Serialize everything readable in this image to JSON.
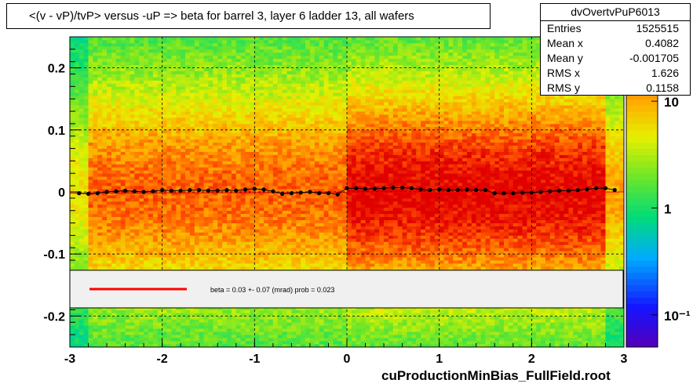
{
  "title": "<(v - vP)/tvP> versus  -uP => beta for barrel 3, layer 6 ladder 13, all wafers",
  "stats": {
    "name": "dvOvertvPuP6013",
    "rows": [
      {
        "label": "Entries",
        "value": "1525515"
      },
      {
        "label": "Mean x",
        "value": "0.4082"
      },
      {
        "label": "Mean y",
        "value": "-0.001705"
      },
      {
        "label": "RMS x",
        "value": "1.626"
      },
      {
        "label": "RMS y",
        "value": "0.1158"
      }
    ]
  },
  "fit_legend": {
    "text": "beta =    0.03 +-  0.07 (mrad) prob = 0.023",
    "line_color": "#ff0000"
  },
  "footer": "cuProductionMinBias_FullField.root",
  "colors": {
    "profile_points": "#000000",
    "fit_line": "#ff0000",
    "grid": "#000000"
  },
  "chart_data": {
    "type": "heatmap",
    "xlim": [
      -3,
      3
    ],
    "ylim": [
      -0.25,
      0.25
    ],
    "x_ticks": [
      -3,
      -2,
      -1,
      0,
      1,
      2,
      3
    ],
    "x_tick_labels": [
      "-3",
      "-2",
      "-1",
      "0",
      "1",
      "2",
      "3"
    ],
    "y_ticks": [
      -0.2,
      -0.1,
      0,
      0.1,
      0.2
    ],
    "y_tick_labels": [
      "-0.2",
      "-0.1",
      "0",
      "0.1",
      "0.2"
    ],
    "grid": true,
    "color_scale": "log",
    "z_tick_labels": [
      "10",
      "1",
      "10⁻¹"
    ],
    "z_tick_values": [
      10,
      1,
      0.1
    ],
    "zlim": [
      0.05,
      40
    ],
    "profile": {
      "x": [
        -2.9,
        -2.8,
        -2.7,
        -2.6,
        -2.5,
        -2.4,
        -2.3,
        -2.2,
        -2.1,
        -2.0,
        -1.9,
        -1.8,
        -1.7,
        -1.6,
        -1.5,
        -1.4,
        -1.3,
        -1.2,
        -1.1,
        -1.0,
        -0.9,
        -0.8,
        -0.7,
        -0.6,
        -0.5,
        -0.4,
        -0.3,
        -0.2,
        -0.1,
        0.0,
        0.1,
        0.2,
        0.3,
        0.4,
        0.5,
        0.6,
        0.7,
        0.8,
        0.9,
        1.0,
        1.1,
        1.2,
        1.3,
        1.4,
        1.5,
        1.6,
        1.7,
        1.8,
        1.9,
        2.0,
        2.1,
        2.2,
        2.3,
        2.4,
        2.5,
        2.6,
        2.7,
        2.8,
        2.9
      ],
      "y": [
        -0.002,
        -0.003,
        -0.002,
        0.0,
        0.001,
        0.002,
        0.001,
        0.0,
        0.001,
        0.003,
        0.002,
        0.002,
        0.003,
        0.003,
        0.002,
        0.002,
        0.003,
        0.002,
        0.004,
        0.005,
        0.004,
        0.001,
        -0.003,
        -0.002,
        -0.001,
        0.0,
        -0.002,
        -0.002,
        -0.004,
        0.006,
        0.006,
        0.005,
        0.005,
        0.006,
        0.007,
        0.007,
        0.006,
        0.004,
        0.003,
        0.004,
        0.003,
        0.003,
        0.004,
        0.003,
        0.003,
        -0.002,
        -0.002,
        -0.002,
        -0.001,
        -0.001,
        0.0,
        0.001,
        0.002,
        0.002,
        0.003,
        0.004,
        0.006,
        0.006,
        0.003
      ]
    },
    "fit_line": {
      "x": [
        -3,
        3
      ],
      "y": [
        -0.002,
        0.0
      ]
    }
  }
}
